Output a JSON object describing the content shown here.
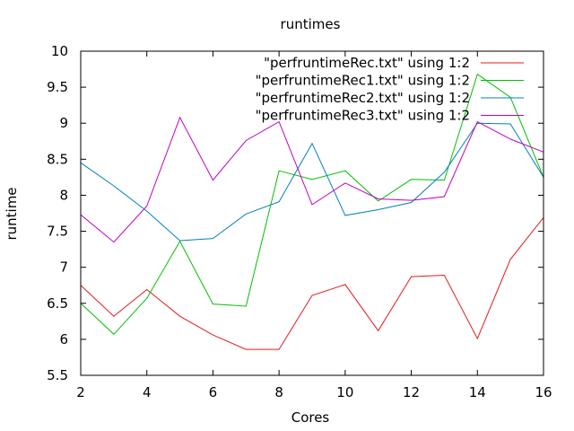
{
  "chart_data": {
    "type": "line",
    "title": "runtimes",
    "xlabel": "Cores",
    "ylabel": "runtime",
    "xlim": [
      2,
      16
    ],
    "ylim": [
      5.5,
      10
    ],
    "xticks": [
      2,
      4,
      6,
      8,
      10,
      12,
      14,
      16
    ],
    "yticks": [
      5.5,
      6,
      6.5,
      7,
      7.5,
      8,
      8.5,
      9,
      9.5,
      10
    ],
    "grid": false,
    "legend_position": "top-right",
    "x": [
      2,
      3,
      4,
      5,
      6,
      7,
      8,
      9,
      10,
      11,
      12,
      13,
      14,
      15,
      16
    ],
    "series": [
      {
        "name": "\"perfruntimeRec.txt\" using 1:2",
        "color": "#e41a1c",
        "values": [
          6.75,
          6.32,
          6.69,
          6.32,
          6.06,
          5.86,
          5.86,
          6.61,
          6.76,
          6.12,
          6.87,
          6.89,
          6.01,
          7.11,
          7.69
        ]
      },
      {
        "name": "\"perfruntimeRec1.txt\" using 1:2",
        "color": "#00c000",
        "values": [
          6.5,
          6.07,
          6.57,
          7.36,
          6.49,
          6.46,
          8.34,
          8.22,
          8.34,
          7.92,
          8.22,
          8.21,
          9.68,
          9.36,
          8.25
        ]
      },
      {
        "name": "\"perfruntimeRec2.txt\" using 1:2",
        "color": "#0080c0",
        "values": [
          8.45,
          8.13,
          7.78,
          7.37,
          7.4,
          7.74,
          7.91,
          8.72,
          7.72,
          7.8,
          7.9,
          8.32,
          9.0,
          8.99,
          8.25
        ]
      },
      {
        "name": "\"perfruntimeRec3.txt\" using 1:2",
        "color": "#c000c0",
        "values": [
          7.73,
          7.35,
          7.85,
          9.08,
          8.21,
          8.76,
          9.02,
          7.87,
          8.17,
          7.95,
          7.93,
          7.98,
          9.02,
          8.78,
          8.6
        ]
      }
    ]
  }
}
